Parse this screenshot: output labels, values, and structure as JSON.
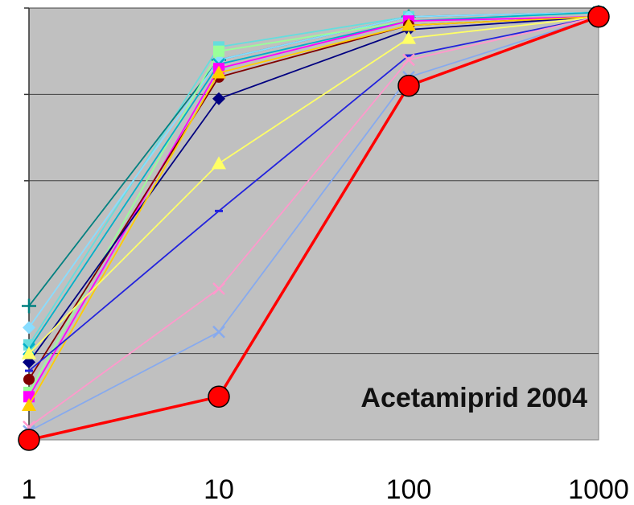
{
  "chart_data": {
    "type": "line",
    "title": "",
    "xlabel": "",
    "ylabel": "",
    "x_scale": "log",
    "x": [
      1,
      10,
      100,
      1000
    ],
    "x_tick_labels": [
      "1",
      "10",
      "100",
      "1000"
    ],
    "ylim": [
      0,
      100
    ],
    "y_gridlines": [
      20,
      60,
      80,
      100
    ],
    "grid": true,
    "legend": "none",
    "plot_background": "#c0c0c0",
    "annotation": "Acetamiprid 2004",
    "series": [
      {
        "color": "#ff0000",
        "marker": "circle-large",
        "values": [
          0,
          10,
          82,
          98
        ]
      },
      {
        "color": "#87aaee",
        "marker": "x",
        "values": [
          2,
          25,
          84,
          98
        ]
      },
      {
        "color": "#ff99cc",
        "marker": "x",
        "values": [
          3,
          35,
          88,
          98
        ]
      },
      {
        "color": "#2222dd",
        "marker": "dash",
        "values": [
          16,
          53,
          89,
          98
        ]
      },
      {
        "color": "#ffff66",
        "marker": "triangle",
        "values": [
          20,
          64,
          93,
          98
        ]
      },
      {
        "color": "#ffcc00",
        "marker": "triangle",
        "values": [
          8,
          85,
          96,
          98
        ]
      },
      {
        "color": "#000080",
        "marker": "diamond",
        "values": [
          18,
          79,
          95,
          98
        ]
      },
      {
        "color": "#800000",
        "marker": "circle",
        "values": [
          14,
          84,
          96,
          98
        ]
      },
      {
        "color": "#ff00ff",
        "marker": "square",
        "values": [
          10,
          86,
          97,
          98
        ]
      },
      {
        "color": "#00b0c8",
        "marker": "x",
        "values": [
          21,
          87,
          97,
          99
        ]
      },
      {
        "color": "#99ff99",
        "marker": "square",
        "values": [
          11,
          90,
          97,
          99
        ]
      },
      {
        "color": "#88ddff",
        "marker": "diamond",
        "values": [
          26,
          88,
          98,
          99
        ]
      },
      {
        "color": "#008080",
        "marker": "plus",
        "values": [
          31,
          88,
          98,
          99
        ]
      },
      {
        "color": "#66dddd",
        "marker": "square",
        "values": [
          22,
          91,
          98,
          99
        ]
      }
    ]
  }
}
